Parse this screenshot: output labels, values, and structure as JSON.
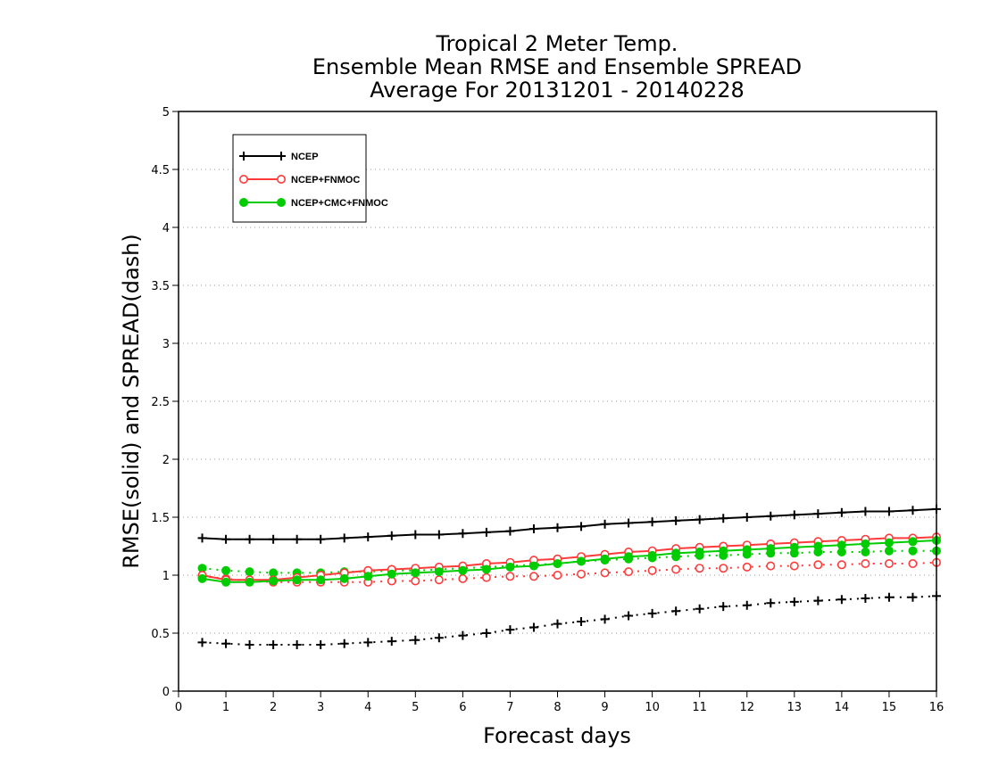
{
  "chart_data": {
    "type": "line",
    "title": [
      "Tropical 2 Meter Temp.",
      "Ensemble Mean RMSE and Ensemble SPREAD",
      "Average For 20131201 - 20140228"
    ],
    "xlabel": "Forecast days",
    "ylabel": "RMSE(solid) and SPREAD(dash)",
    "xlim": [
      0,
      16
    ],
    "ylim": [
      0,
      5
    ],
    "xticks": [
      0,
      1,
      2,
      3,
      4,
      5,
      6,
      7,
      8,
      9,
      10,
      11,
      12,
      13,
      14,
      15,
      16
    ],
    "xtick_labels": [
      "0",
      "1",
      "2",
      "3",
      "4",
      "5",
      "6",
      "7",
      "8",
      "9",
      "10",
      "11",
      "12",
      "13",
      "14",
      "15",
      "16"
    ],
    "yticks": [
      0,
      0.5,
      1,
      1.5,
      2,
      2.5,
      3,
      3.5,
      4,
      4.5,
      5
    ],
    "ytick_labels": [
      "0",
      "0.5",
      "1",
      "1.5",
      "2",
      "2.5",
      "3",
      "3.5",
      "4",
      "4.5",
      "5"
    ],
    "grid": "horizontal dotted",
    "legend_position": "top-left",
    "x": [
      0.5,
      1,
      1.5,
      2,
      2.5,
      3,
      3.5,
      4,
      4.5,
      5,
      5.5,
      6,
      6.5,
      7,
      7.5,
      8,
      8.5,
      9,
      9.5,
      10,
      10.5,
      11,
      11.5,
      12,
      12.5,
      13,
      13.5,
      14,
      14.5,
      15,
      15.5,
      16
    ],
    "series": [
      {
        "name": "NCEP",
        "color": "#000000",
        "marker": "plus",
        "rmse": [
          1.32,
          1.31,
          1.31,
          1.31,
          1.31,
          1.31,
          1.32,
          1.33,
          1.34,
          1.35,
          1.35,
          1.36,
          1.37,
          1.38,
          1.4,
          1.41,
          1.42,
          1.44,
          1.45,
          1.46,
          1.47,
          1.48,
          1.49,
          1.5,
          1.51,
          1.52,
          1.53,
          1.54,
          1.55,
          1.55,
          1.56,
          1.57
        ],
        "spread": [
          0.42,
          0.41,
          0.4,
          0.4,
          0.4,
          0.4,
          0.41,
          0.42,
          0.43,
          0.44,
          0.46,
          0.48,
          0.5,
          0.53,
          0.55,
          0.58,
          0.6,
          0.62,
          0.65,
          0.67,
          0.69,
          0.71,
          0.73,
          0.74,
          0.76,
          0.77,
          0.78,
          0.79,
          0.8,
          0.81,
          0.81,
          0.82
        ]
      },
      {
        "name": "NCEP+FNMOC",
        "color": "#ff3a3a",
        "marker": "open-circle",
        "rmse": [
          1.0,
          0.96,
          0.96,
          0.96,
          0.98,
          1.0,
          1.02,
          1.04,
          1.05,
          1.06,
          1.07,
          1.08,
          1.1,
          1.11,
          1.13,
          1.14,
          1.16,
          1.18,
          1.2,
          1.21,
          1.23,
          1.24,
          1.25,
          1.26,
          1.27,
          1.28,
          1.29,
          1.3,
          1.31,
          1.32,
          1.32,
          1.33
        ],
        "spread": [
          0.99,
          0.97,
          0.95,
          0.94,
          0.94,
          0.94,
          0.94,
          0.94,
          0.95,
          0.95,
          0.96,
          0.97,
          0.98,
          0.99,
          0.99,
          1.0,
          1.01,
          1.02,
          1.03,
          1.04,
          1.05,
          1.06,
          1.06,
          1.07,
          1.08,
          1.08,
          1.09,
          1.09,
          1.1,
          1.1,
          1.1,
          1.11
        ]
      },
      {
        "name": "NCEP+CMC+FNMOC",
        "color": "#00cc00",
        "marker": "filled-circle",
        "rmse": [
          0.97,
          0.94,
          0.94,
          0.95,
          0.96,
          0.96,
          0.97,
          0.99,
          1.01,
          1.02,
          1.03,
          1.04,
          1.05,
          1.07,
          1.08,
          1.1,
          1.12,
          1.14,
          1.16,
          1.17,
          1.19,
          1.2,
          1.21,
          1.22,
          1.23,
          1.24,
          1.25,
          1.26,
          1.27,
          1.28,
          1.29,
          1.3
        ],
        "spread": [
          1.06,
          1.04,
          1.03,
          1.02,
          1.02,
          1.02,
          1.03,
          1.03,
          1.04,
          1.04,
          1.05,
          1.06,
          1.07,
          1.08,
          1.09,
          1.1,
          1.12,
          1.13,
          1.14,
          1.15,
          1.16,
          1.17,
          1.17,
          1.18,
          1.19,
          1.19,
          1.2,
          1.2,
          1.2,
          1.21,
          1.21,
          1.21
        ]
      }
    ]
  }
}
